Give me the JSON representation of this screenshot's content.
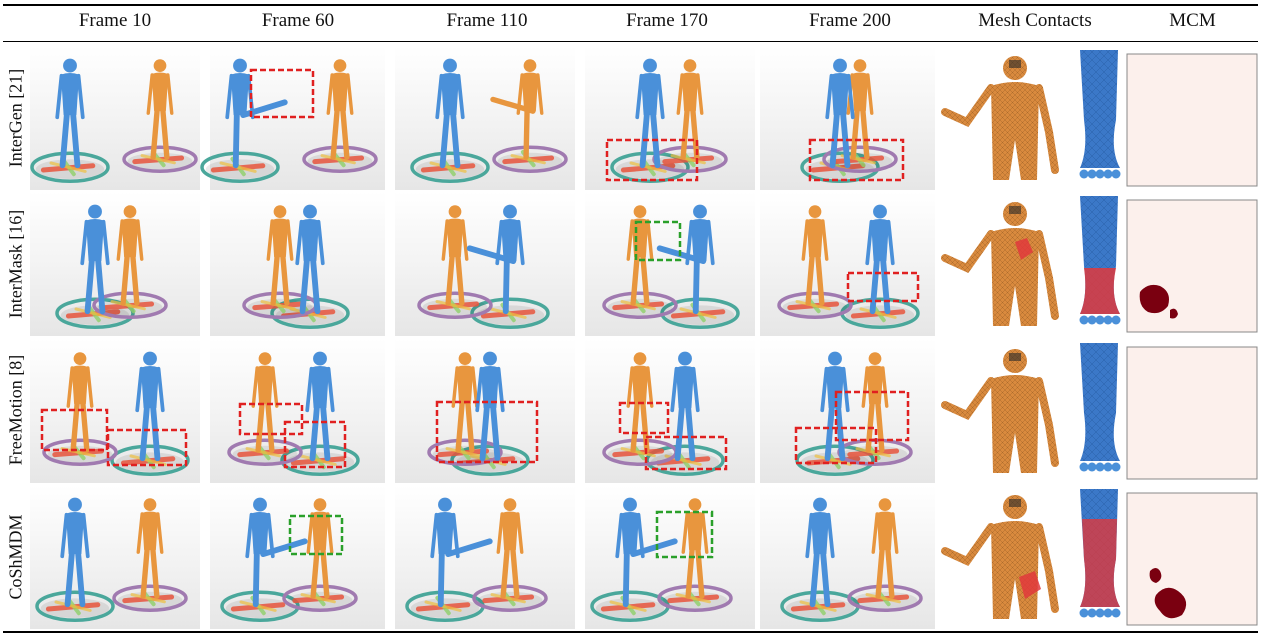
{
  "columns": [
    "Frame 10",
    "Frame 60",
    "Frame 110",
    "Frame 170",
    "Frame 200",
    "Mesh Contacts",
    "MCM"
  ],
  "methods": [
    {
      "label": "InterGen [21]"
    },
    {
      "label": "InterMask [16]"
    },
    {
      "label": "FreeMotion [8]"
    },
    {
      "label": "CoShMDM"
    }
  ],
  "colors": {
    "blue_person": "#4a90d9",
    "orange_person": "#e8963e",
    "teal_ring": "#4aa79b",
    "purple_ring": "#a07ab0",
    "mesh_body": "#d98a3e",
    "leg_blue": "#3b78c8",
    "contact_red": "#e0383c",
    "mcm_background": "#fcf0ec",
    "mcm_blob": "#7a0010",
    "penetration_box": "#e02020",
    "contact_box": "#2aa02a"
  }
}
